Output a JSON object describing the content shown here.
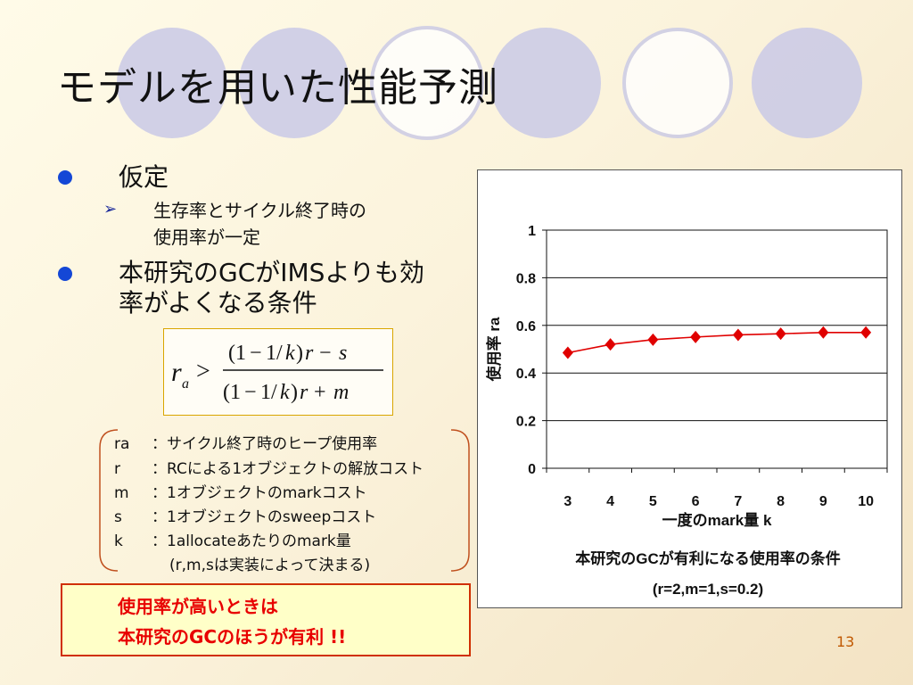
{
  "slide": {
    "title": "モデルを用いた性能予測",
    "bullets": [
      {
        "text": "仮定",
        "sub": [
          "生存率とサイクル終了時の",
          "使用率が一定"
        ]
      },
      {
        "lines": [
          "本研究のGCがIMSよりも効",
          "率がよくなる条件"
        ]
      }
    ],
    "definitions": [
      {
        "symbol": "ra",
        "text": "：サイクル終了時のヒープ使用率"
      },
      {
        "symbol": "r",
        "text": "：RCによる1オブジェクトの解放コスト"
      },
      {
        "symbol": "m",
        "text": "：1オブジェクトのmarkコスト"
      },
      {
        "symbol": "s",
        "text": "：1オブジェクトのsweepコスト"
      },
      {
        "symbol": "k",
        "text": "：1allocateあたりのmark量"
      }
    ],
    "definitions_note": "(r,m,sは実装によって決まる)",
    "conclusion": [
      "使用率が高いときは",
      "本研究のGCのほうが有利 !!"
    ],
    "page_number": "13",
    "colors": {
      "bullet": "#1447d6",
      "conclusion_text": "#e80000",
      "series": "#e00000"
    }
  },
  "chart_data": {
    "type": "line",
    "x": [
      3,
      4,
      5,
      6,
      7,
      8,
      9,
      10
    ],
    "series": [
      {
        "values": [
          0.485,
          0.52,
          0.54,
          0.551,
          0.56,
          0.565,
          0.57,
          0.57
        ]
      }
    ],
    "xlabel": "一度のmark量 k",
    "ylabel": "使用率 ra",
    "ylim": [
      0,
      1
    ],
    "yticks": [
      "0",
      "0.2",
      "0.4",
      "0.6",
      "0.8",
      "1"
    ],
    "xticks": [
      "3",
      "4",
      "5",
      "6",
      "7",
      "8",
      "9",
      "10"
    ],
    "caption": [
      "本研究のGCが有利になる使用率の条件",
      "(r=2,m=1,s=0.2)"
    ],
    "grid": "horizontal",
    "marker": "diamond"
  }
}
